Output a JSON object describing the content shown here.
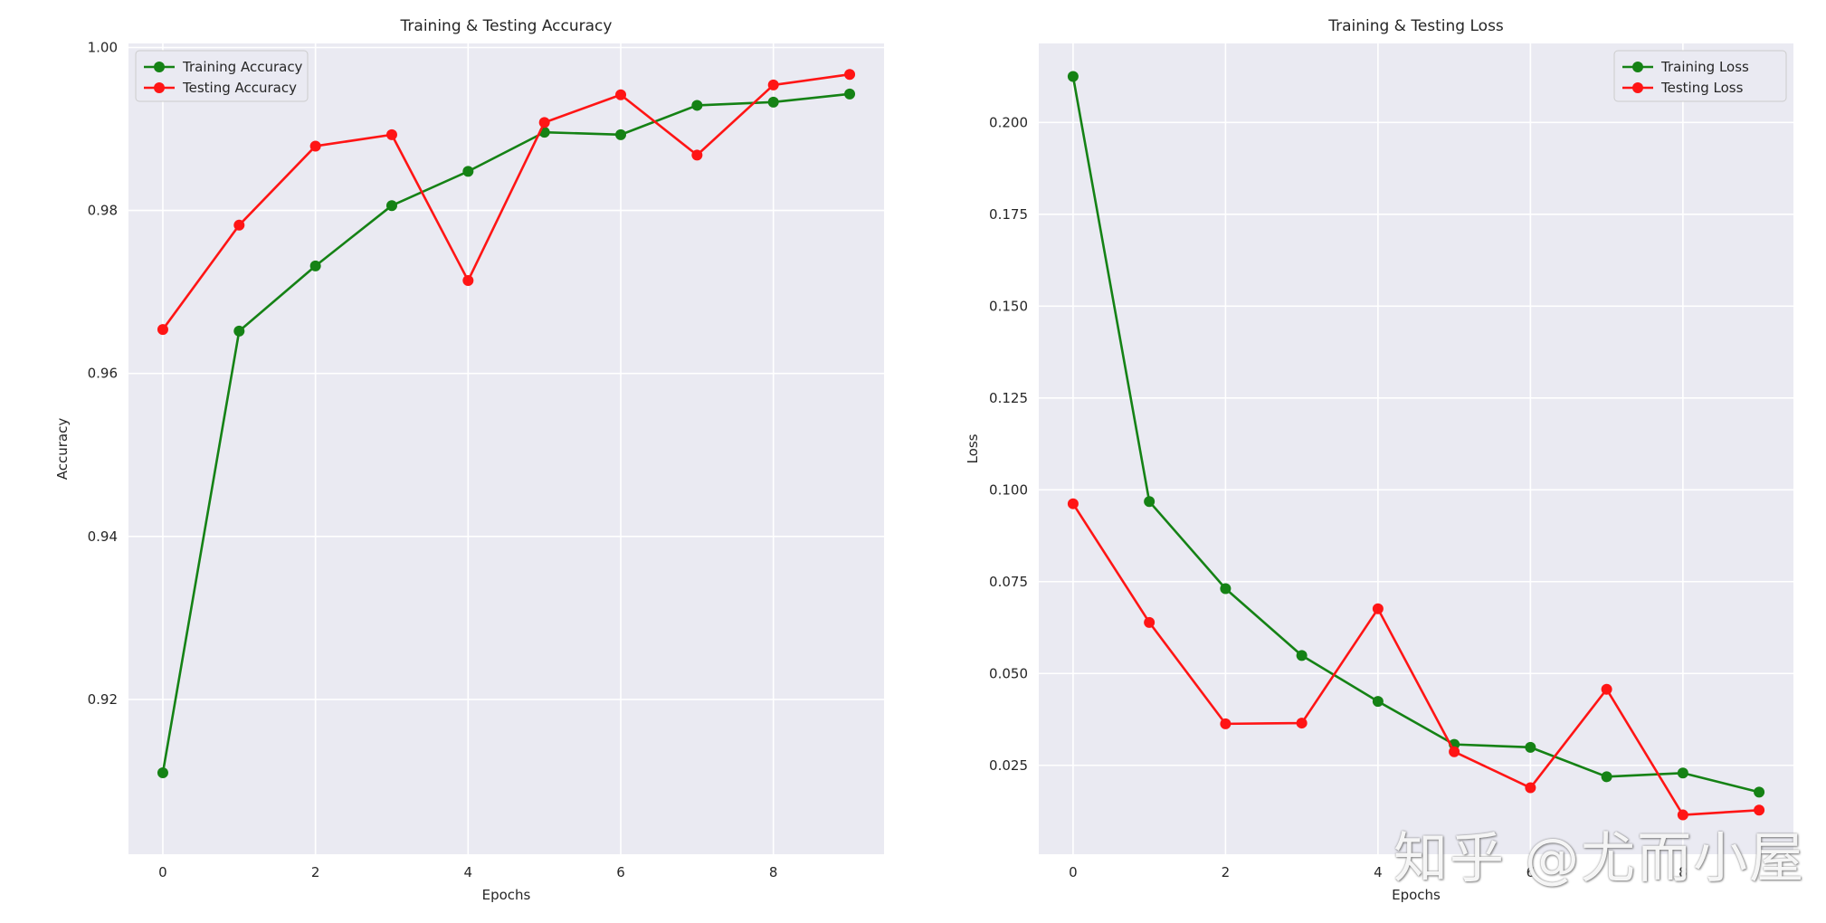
{
  "chart_data": [
    {
      "type": "line",
      "title": "Training & Testing Accuracy",
      "xlabel": "Epochs",
      "ylabel": "Accuracy",
      "x": [
        0,
        1,
        2,
        3,
        4,
        5,
        6,
        7,
        8,
        9
      ],
      "xlim": [
        -0.45,
        9.45
      ],
      "ylim": [
        0.901,
        1.0005
      ],
      "xticks": [
        "0",
        "2",
        "4",
        "6",
        "8"
      ],
      "yticks": [
        "0.92",
        "0.94",
        "0.96",
        "0.98",
        "1.00"
      ],
      "grid": true,
      "legend_position": "top-left",
      "series": [
        {
          "name": "Training Accuracy",
          "color": "#158215",
          "values": [
            0.911,
            0.9652,
            0.9732,
            0.9806,
            0.9848,
            0.9896,
            0.9893,
            0.9929,
            0.9933,
            0.9943
          ]
        },
        {
          "name": "Testing Accuracy",
          "color": "#ff1515",
          "values": [
            0.9654,
            0.9782,
            0.9879,
            0.9893,
            0.9714,
            0.9908,
            0.9942,
            0.9868,
            0.9954,
            0.9967
          ]
        }
      ]
    },
    {
      "type": "line",
      "title": "Training & Testing Loss",
      "xlabel": "Epochs",
      "ylabel": "Loss",
      "x": [
        0,
        1,
        2,
        3,
        4,
        5,
        6,
        7,
        8,
        9
      ],
      "xlim": [
        -0.45,
        9.45
      ],
      "ylim": [
        0.0008,
        0.2215
      ],
      "xticks": [
        "0",
        "2",
        "4",
        "6",
        "8"
      ],
      "yticks": [
        "0.025",
        "0.050",
        "0.075",
        "0.100",
        "0.125",
        "0.150",
        "0.175",
        "0.200"
      ],
      "grid": true,
      "legend_position": "top-right",
      "series": [
        {
          "name": "Training Loss",
          "color": "#158215",
          "values": [
            0.2125,
            0.0968,
            0.0731,
            0.0549,
            0.0424,
            0.0307,
            0.0299,
            0.0219,
            0.0229,
            0.0177
          ]
        },
        {
          "name": "Testing Loss",
          "color": "#ff1515",
          "values": [
            0.0962,
            0.0639,
            0.0363,
            0.0365,
            0.0676,
            0.0287,
            0.0189,
            0.0457,
            0.0115,
            0.0128
          ]
        }
      ]
    }
  ],
  "watermark": "知乎 @尤而小屋"
}
